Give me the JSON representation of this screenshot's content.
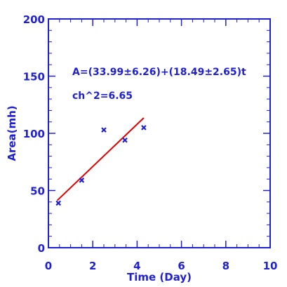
{
  "chart_data": {
    "type": "scatter",
    "xlabel": "Time (Day)",
    "ylabel": "Area(mh)",
    "xlim": [
      0,
      10
    ],
    "ylim": [
      0,
      200
    ],
    "xticks": [
      "0",
      "2",
      "4",
      "6",
      "8",
      "10"
    ],
    "yticks": [
      "0",
      "50",
      "100",
      "150",
      "200"
    ],
    "grid": false,
    "colors": {
      "axes": "#1f1fd6",
      "points": "#1f1fd6",
      "fit": "#e00000"
    },
    "series": [
      {
        "x": [
          0.45,
          1.5,
          2.5,
          3.45,
          4.3
        ],
        "y": [
          39,
          59,
          103,
          94,
          105
        ]
      }
    ],
    "fit": {
      "intercept": 33.99,
      "slope": 18.49,
      "x_range": [
        0.4,
        4.3
      ]
    },
    "annotations": [
      "A=(33.99±6.26)+(18.49±2.65)t",
      "ch^2=6.65"
    ]
  }
}
